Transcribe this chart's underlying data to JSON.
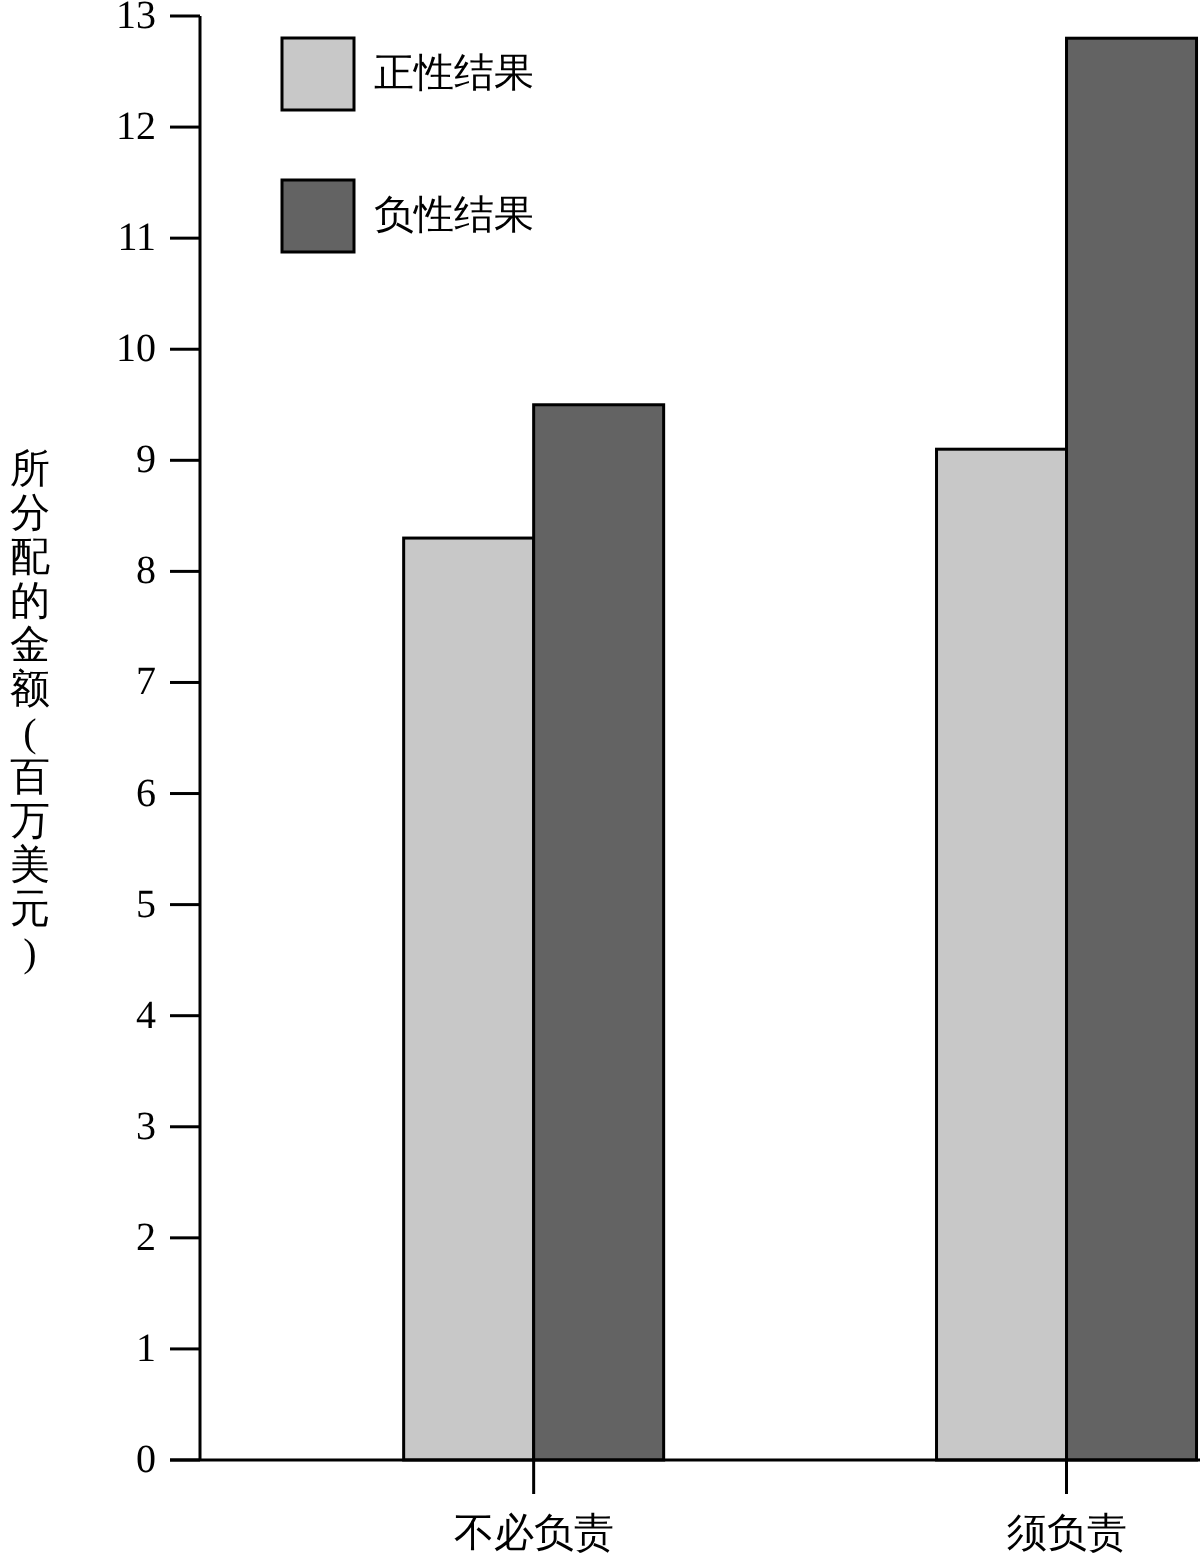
{
  "chart_data": {
    "type": "bar",
    "ylabel": "所分配的金额(百万美元)",
    "categories": [
      "不必负责",
      "须负责"
    ],
    "series": [
      {
        "name": "正性结果",
        "color": "#c8c8c8",
        "values": [
          8.3,
          9.1
        ]
      },
      {
        "name": "负性结果",
        "color": "#636363",
        "values": [
          9.5,
          12.8
        ]
      }
    ],
    "ylim": [
      0,
      13
    ],
    "yticks": [
      0,
      1,
      2,
      3,
      4,
      5,
      6,
      7,
      8,
      9,
      10,
      11,
      12,
      13
    ],
    "grid": false,
    "legend": "top left"
  }
}
